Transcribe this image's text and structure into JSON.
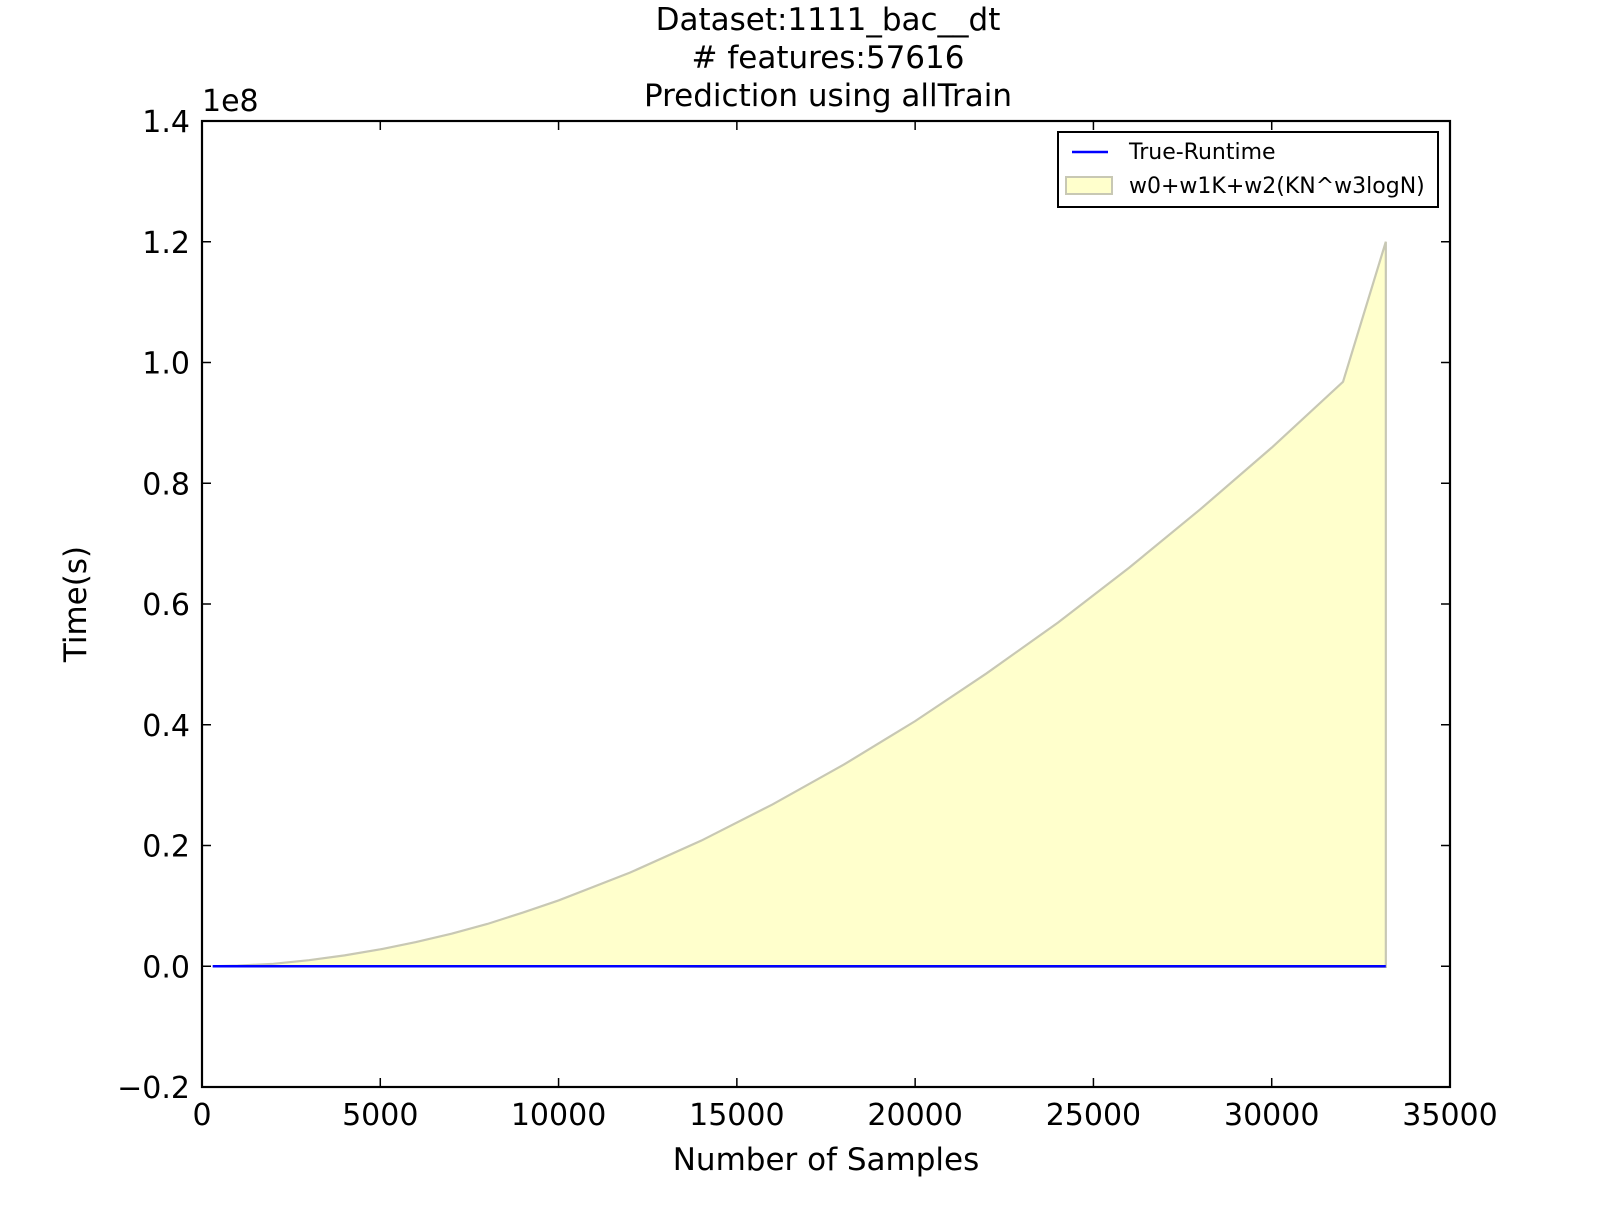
{
  "chart_data": {
    "type": "area",
    "title_lines": [
      "Dataset:1111_bac__dt",
      "# features:57616",
      "Prediction using allTrain"
    ],
    "xlabel": "Number of Samples",
    "ylabel": "Time(s)",
    "y_offset_label": "1e8",
    "xlim": [
      0,
      35000
    ],
    "ylim": [
      -0.2,
      1.4
    ],
    "x_ticks": [
      0,
      5000,
      10000,
      15000,
      20000,
      25000,
      30000,
      35000
    ],
    "x_tick_labels": [
      "0",
      "5000",
      "10000",
      "15000",
      "20000",
      "25000",
      "30000",
      "35000"
    ],
    "y_ticks": [
      -0.2,
      0.0,
      0.2,
      0.4,
      0.6,
      0.8,
      1.0,
      1.2,
      1.4
    ],
    "y_tick_labels": [
      "−0.2",
      "0.0",
      "0.2",
      "0.4",
      "0.6",
      "0.8",
      "1.0",
      "1.2",
      "1.4"
    ],
    "grid": false,
    "legend_position": "top-right",
    "series": [
      {
        "name": "True-Runtime",
        "kind": "line",
        "color": "#0000ff",
        "x": [
          300,
          5000,
          10000,
          15000,
          20000,
          25000,
          30000,
          33200
        ],
        "y": [
          0.0,
          0.0,
          0.0,
          0.0,
          0.0,
          0.0,
          0.0,
          0.0
        ]
      },
      {
        "name": "w0+w1K+w2(KN^w3logN)",
        "kind": "band",
        "fill_color": "#ffffcc",
        "edge_color": "#c8c8b4",
        "x": [
          300,
          1000,
          2000,
          3000,
          4000,
          5000,
          6000,
          7000,
          8000,
          9000,
          10000,
          12000,
          14000,
          16000,
          18000,
          20000,
          22000,
          24000,
          26000,
          28000,
          30000,
          32000,
          33200
        ],
        "upper": [
          0.0,
          0.001,
          0.004,
          0.01,
          0.018,
          0.028,
          0.04,
          0.054,
          0.07,
          0.089,
          0.109,
          0.155,
          0.208,
          0.268,
          0.334,
          0.406,
          0.485,
          0.569,
          0.66,
          0.757,
          0.859,
          0.968,
          1.2
        ],
        "lower": [
          0.0,
          0.0,
          0.0,
          0.0,
          0.0,
          0.0,
          0.0,
          0.0,
          0.0,
          0.0,
          0.0,
          0.0,
          -0.001,
          -0.001,
          -0.001,
          -0.001,
          -0.001,
          -0.001,
          -0.001,
          -0.001,
          -0.001,
          -0.001,
          -0.001
        ]
      }
    ]
  }
}
